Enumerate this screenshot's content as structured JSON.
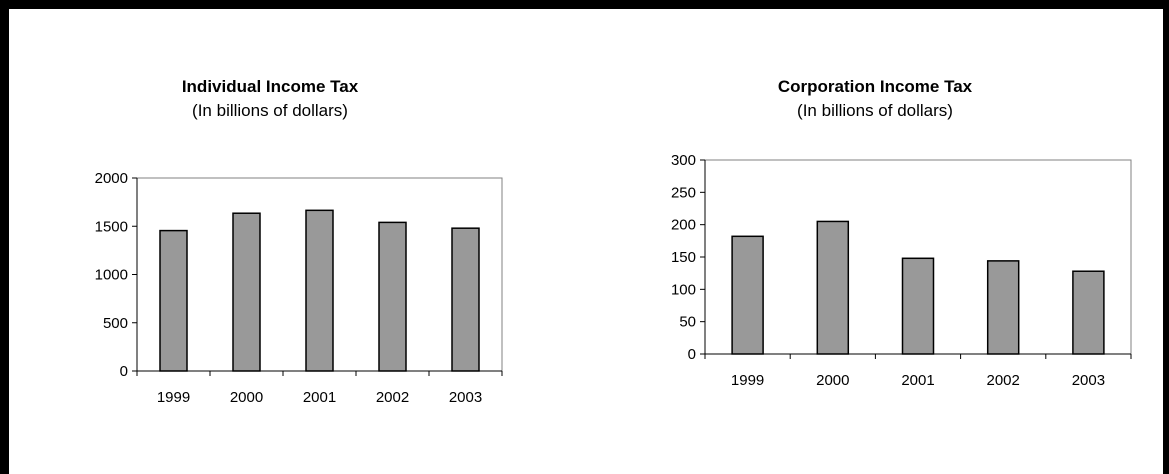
{
  "chart_data": [
    {
      "type": "bar",
      "title": "Individual Income Tax",
      "subtitle": "(In billions of dollars)",
      "categories": [
        "1999",
        "2000",
        "2001",
        "2002",
        "2003"
      ],
      "values": [
        1455,
        1635,
        1665,
        1540,
        1480
      ],
      "ylim": [
        0,
        2000
      ],
      "yticks": [
        "0",
        "500",
        "1000",
        "1500",
        "2000"
      ],
      "bar_color": "#999999",
      "grid": false,
      "legend": "none"
    },
    {
      "type": "bar",
      "title": "Corporation Income Tax",
      "subtitle": "(In billions of dollars)",
      "categories": [
        "1999",
        "2000",
        "2001",
        "2002",
        "2003"
      ],
      "values": [
        182,
        205,
        148,
        144,
        128
      ],
      "ylim": [
        0,
        300
      ],
      "yticks": [
        "0",
        "50",
        "100",
        "150",
        "200",
        "250",
        "300"
      ],
      "bar_color": "#999999",
      "grid": false,
      "legend": "none"
    }
  ]
}
